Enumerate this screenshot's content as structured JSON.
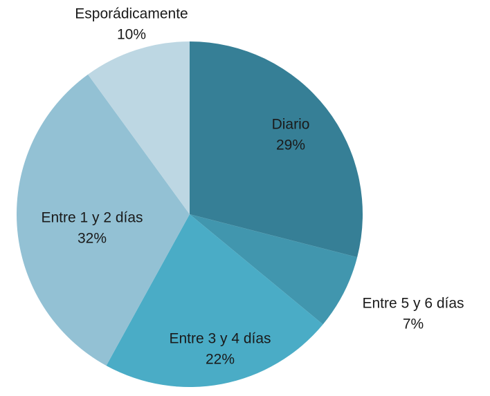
{
  "chart_data": {
    "type": "pie",
    "categories": [
      "Diario",
      "Entre 5 y 6 días",
      "Entre 3 y 4 días",
      "Entre 1 y 2 días",
      "Esporádicamente"
    ],
    "values": [
      29,
      7,
      22,
      32,
      10
    ],
    "value_labels": [
      "29%",
      "7%",
      "22%",
      "32%",
      "10%"
    ],
    "colors": [
      "#367f96",
      "#4196ae",
      "#4aacc6",
      "#93c1d4",
      "#bdd7e3"
    ]
  }
}
